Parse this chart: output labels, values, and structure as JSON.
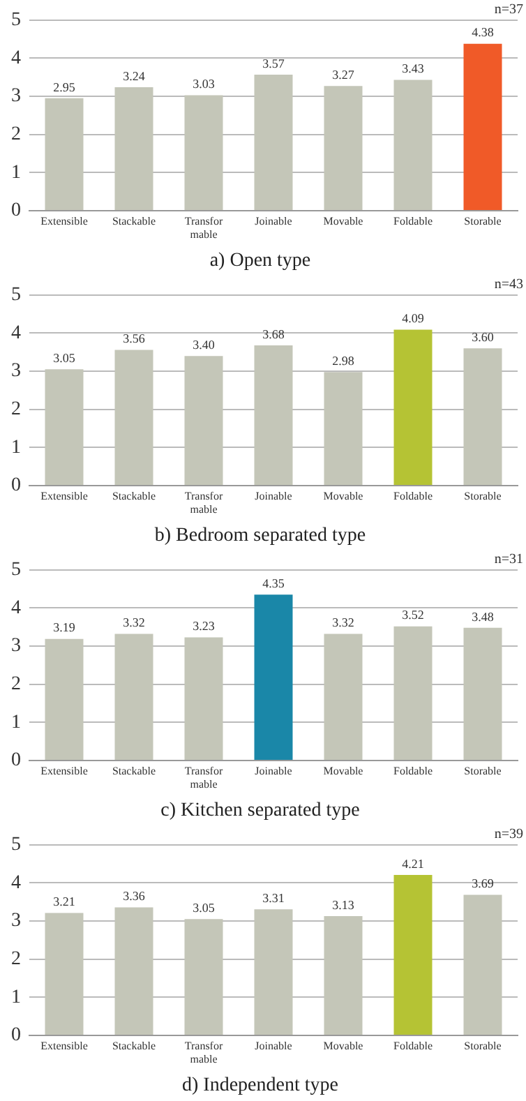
{
  "chart_data": [
    {
      "type": "bar",
      "title": "a) Open type",
      "categories": [
        "Extensible",
        "Stackable",
        "Transfor\nmable",
        "Joinable",
        "Movable",
        "Foldable",
        "Storable"
      ],
      "values": [
        2.95,
        3.24,
        3.03,
        3.57,
        3.27,
        3.43,
        4.38
      ],
      "colors": [
        "#c4c6b8",
        "#c4c6b8",
        "#c4c6b8",
        "#c4c6b8",
        "#c4c6b8",
        "#c4c6b8",
        "#f05a28"
      ],
      "ylim": [
        0,
        5
      ],
      "yticks": [
        0,
        1,
        2,
        3,
        4,
        5
      ],
      "grid": "y",
      "data_labels": true,
      "annotations": [
        "n=37"
      ]
    },
    {
      "type": "bar",
      "title": "b) Bedroom separated type",
      "categories": [
        "Extensible",
        "Stackable",
        "Transfor\nmable",
        "Joinable",
        "Movable",
        "Foldable",
        "Storable"
      ],
      "values": [
        3.05,
        3.56,
        3.4,
        3.68,
        2.98,
        4.09,
        3.6
      ],
      "value_labels": [
        "3.05",
        "3.56",
        "3.40",
        "3.68",
        "2.98",
        "4.09",
        "3.60"
      ],
      "colors": [
        "#c4c6b8",
        "#c4c6b8",
        "#c4c6b8",
        "#c4c6b8",
        "#c4c6b8",
        "#b5c334",
        "#c4c6b8"
      ],
      "ylim": [
        0,
        5
      ],
      "yticks": [
        0,
        1,
        2,
        3,
        4,
        5
      ],
      "grid": "y",
      "annotations": [
        "n=43"
      ]
    },
    {
      "type": "bar",
      "title": "c) Kitchen separated type",
      "categories": [
        "Extensible",
        "Stackable",
        "Transfor\nmable",
        "Joinable",
        "Movable",
        "Foldable",
        "Storable"
      ],
      "values": [
        3.19,
        3.32,
        3.23,
        4.35,
        3.32,
        3.52,
        3.48
      ],
      "colors": [
        "#c4c6b8",
        "#c4c6b8",
        "#c4c6b8",
        "#1a87a8",
        "#c4c6b8",
        "#c4c6b8",
        "#c4c6b8"
      ],
      "ylim": [
        0,
        5
      ],
      "yticks": [
        0,
        1,
        2,
        3,
        4,
        5
      ],
      "grid": "y",
      "data_labels": true,
      "annotations": [
        "n=31"
      ]
    },
    {
      "type": "bar",
      "title": "d) Independent type",
      "categories": [
        "Extensible",
        "Stackable",
        "Transfor\nmable",
        "Joinable",
        "Movable",
        "Foldable",
        "Storable"
      ],
      "values": [
        3.21,
        3.36,
        3.05,
        3.31,
        3.13,
        4.21,
        3.69
      ],
      "colors": [
        "#c4c6b8",
        "#c4c6b8",
        "#c4c6b8",
        "#c4c6b8",
        "#c4c6b8",
        "#b5c334",
        "#c4c6b8"
      ],
      "ylim": [
        0,
        5
      ],
      "yticks": [
        0,
        1,
        2,
        3,
        4,
        5
      ],
      "grid": "y",
      "data_labels": true,
      "annotations": [
        "n=39"
      ]
    }
  ]
}
